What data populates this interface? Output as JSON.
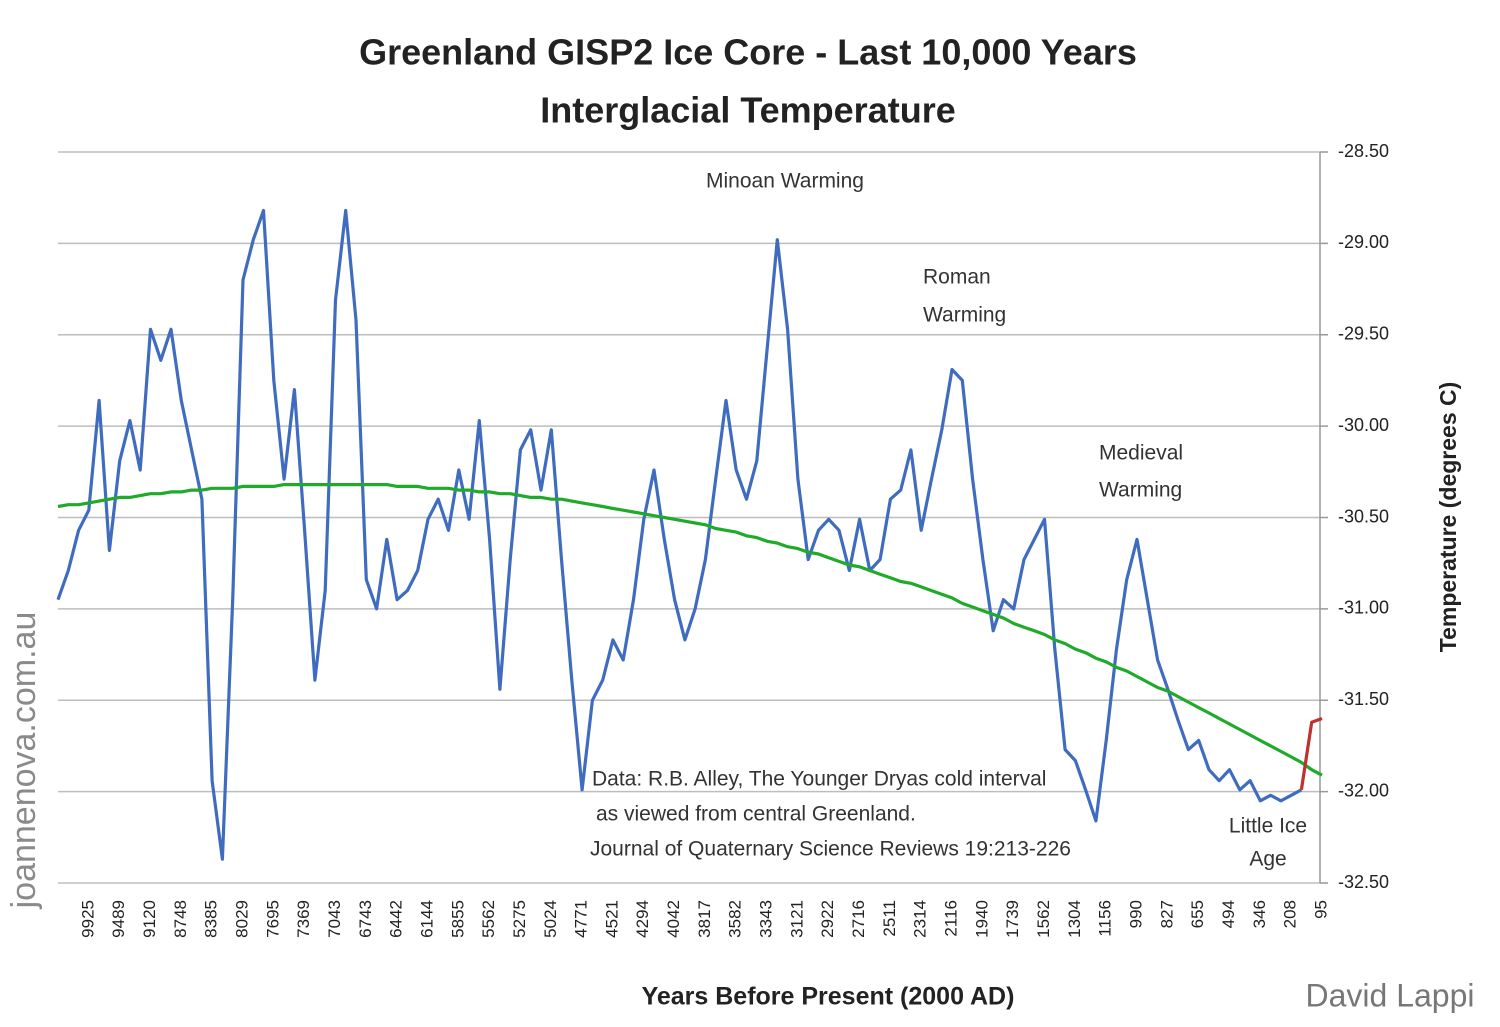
{
  "chart_data": {
    "type": "line",
    "title": [
      "Greenland GISP2 Ice Core - Last 10,000 Years",
      "Interglacial Temperature"
    ],
    "x_label": "Years Before Present (2000 AD)",
    "y_label": "Temperature (degrees C)",
    "categories": [
      null,
      null,
      null,
      "9925",
      null,
      null,
      "9489",
      null,
      null,
      "9120",
      null,
      null,
      "8748",
      null,
      null,
      "8385",
      null,
      null,
      "8029",
      null,
      null,
      "7695",
      null,
      null,
      "7369",
      null,
      null,
      "7043",
      null,
      null,
      "6743",
      null,
      null,
      "6442",
      null,
      null,
      "6144",
      null,
      null,
      "5855",
      null,
      null,
      "5562",
      null,
      null,
      "5275",
      null,
      null,
      "5024",
      null,
      null,
      "4771",
      null,
      null,
      "4521",
      null,
      null,
      "4294",
      null,
      null,
      "4042",
      null,
      null,
      "3817",
      null,
      null,
      "3582",
      null,
      null,
      "3343",
      null,
      null,
      "3121",
      null,
      null,
      "2922",
      null,
      null,
      "2716",
      null,
      null,
      "2511",
      null,
      null,
      "2314",
      null,
      null,
      "2116",
      null,
      null,
      "1940",
      null,
      null,
      "1739",
      null,
      null,
      "1562",
      null,
      null,
      "1304",
      null,
      null,
      "1156",
      null,
      null,
      "990",
      null,
      null,
      "827",
      null,
      null,
      "655",
      null,
      null,
      "494",
      null,
      null,
      "346",
      null,
      null,
      "208",
      null,
      null,
      "95"
    ],
    "series": [
      {
        "color": "#3f6cbf",
        "values": [
          -30.95,
          -30.79,
          -30.57,
          -30.46,
          -29.86,
          -30.68,
          -30.19,
          -29.97,
          -30.24,
          -29.47,
          -29.64,
          -29.47,
          -29.86,
          -30.13,
          -30.4,
          -31.94,
          -32.37,
          -30.95,
          -29.2,
          -28.98,
          -28.82,
          -29.75,
          -30.29,
          -29.8,
          -30.57,
          -31.39,
          -30.9,
          -29.31,
          -28.82,
          -29.42,
          -30.84,
          -31.0,
          -30.62,
          -30.95,
          -30.9,
          -30.79,
          -30.51,
          -30.4,
          -30.57,
          -30.24,
          -30.51,
          -29.97,
          -30.62,
          -31.44,
          -30.73,
          -30.13,
          -30.02,
          -30.35,
          -30.02,
          -30.73,
          -31.39,
          -31.99,
          -31.5,
          -31.39,
          -31.17,
          -31.28,
          -30.95,
          -30.51,
          -30.24,
          -30.62,
          -30.95,
          -31.17,
          -31.0,
          -30.73,
          -30.29,
          -29.86,
          -30.24,
          -30.4,
          -30.19,
          -29.58,
          -28.98,
          -29.47,
          -30.29,
          -30.73,
          -30.57,
          -30.51,
          -30.57,
          -30.79,
          -30.51,
          -30.79,
          -30.73,
          -30.4,
          -30.35,
          -30.13,
          -30.57,
          -30.29,
          -30.02,
          -29.69,
          -29.75,
          -30.29,
          -30.73,
          -31.12,
          -30.95,
          -31.0,
          -30.73,
          -30.62,
          -30.51,
          -31.22,
          -31.77,
          -31.83,
          -31.99,
          -32.16,
          -31.72,
          -31.22,
          -30.84,
          -30.62,
          -30.95,
          -31.28,
          -31.44,
          -31.61,
          -31.77,
          -31.72,
          -31.88,
          -31.94,
          -31.88,
          -31.99,
          -31.94,
          -32.05,
          -32.02,
          -32.05,
          -32.02,
          -31.99,
          null,
          null
        ]
      },
      {
        "color": "#1faa2a",
        "values": [
          -30.44,
          -30.43,
          -30.43,
          -30.42,
          -30.41,
          -30.4,
          -30.39,
          -30.39,
          -30.38,
          -30.37,
          -30.37,
          -30.36,
          -30.36,
          -30.35,
          -30.35,
          -30.34,
          -30.34,
          -30.34,
          -30.33,
          -30.33,
          -30.33,
          -30.33,
          -30.32,
          -30.32,
          -30.32,
          -30.32,
          -30.32,
          -30.32,
          -30.32,
          -30.32,
          -30.32,
          -30.32,
          -30.32,
          -30.33,
          -30.33,
          -30.33,
          -30.34,
          -30.34,
          -30.34,
          -30.35,
          -30.35,
          -30.36,
          -30.36,
          -30.37,
          -30.37,
          -30.38,
          -30.39,
          -30.39,
          -30.4,
          -30.4,
          -30.41,
          -30.42,
          -30.43,
          -30.44,
          -30.45,
          -30.46,
          -30.47,
          -30.48,
          -30.49,
          -30.5,
          -30.51,
          -30.52,
          -30.53,
          -30.54,
          -30.56,
          -30.57,
          -30.58,
          -30.6,
          -30.61,
          -30.63,
          -30.64,
          -30.66,
          -30.67,
          -30.69,
          -30.7,
          -30.72,
          -30.74,
          -30.76,
          -30.77,
          -30.79,
          -30.81,
          -30.83,
          -30.85,
          -30.86,
          -30.88,
          -30.9,
          -30.92,
          -30.94,
          -30.97,
          -30.99,
          -31.01,
          -31.03,
          -31.05,
          -31.08,
          -31.1,
          -31.12,
          -31.14,
          -31.17,
          -31.19,
          -31.22,
          -31.24,
          -31.27,
          -31.29,
          -31.32,
          -31.34,
          -31.37,
          -31.4,
          -31.43,
          -31.45,
          -31.48,
          -31.51,
          -31.54,
          -31.57,
          -31.6,
          -31.63,
          -31.66,
          -31.69,
          -31.72,
          -31.75,
          -31.78,
          -31.81,
          -31.84,
          -31.88,
          -31.91
        ]
      },
      {
        "color": "#c0302e",
        "values": [
          null,
          null,
          null,
          null,
          null,
          null,
          null,
          null,
          null,
          null,
          null,
          null,
          null,
          null,
          null,
          null,
          null,
          null,
          null,
          null,
          null,
          null,
          null,
          null,
          null,
          null,
          null,
          null,
          null,
          null,
          null,
          null,
          null,
          null,
          null,
          null,
          null,
          null,
          null,
          null,
          null,
          null,
          null,
          null,
          null,
          null,
          null,
          null,
          null,
          null,
          null,
          null,
          null,
          null,
          null,
          null,
          null,
          null,
          null,
          null,
          null,
          null,
          null,
          null,
          null,
          null,
          null,
          null,
          null,
          null,
          null,
          null,
          null,
          null,
          null,
          null,
          null,
          null,
          null,
          null,
          null,
          null,
          null,
          null,
          null,
          null,
          null,
          null,
          null,
          null,
          null,
          null,
          null,
          null,
          null,
          null,
          null,
          null,
          null,
          null,
          null,
          null,
          null,
          null,
          null,
          null,
          null,
          null,
          null,
          null,
          null,
          null,
          null,
          null,
          null,
          null,
          null,
          null,
          null,
          null,
          null,
          -31.99,
          -31.62,
          -31.6
        ]
      }
    ],
    "ylim": [
      -32.5,
      -28.5
    ],
    "yticks": [
      {
        "value": -32.5,
        "label": "-32.50"
      },
      {
        "value": -32,
        "label": "-32.00"
      },
      {
        "value": -31.5,
        "label": "-31.50"
      },
      {
        "value": -31,
        "label": "-31.00"
      },
      {
        "value": -30.5,
        "label": "-30.50"
      },
      {
        "value": -30,
        "label": "-30.00"
      },
      {
        "value": -29.5,
        "label": "-29.50"
      },
      {
        "value": -29,
        "label": "-29.00"
      },
      {
        "value": -28.5,
        "label": "-28.50"
      }
    ],
    "grid": true,
    "annotations": [
      [
        "Minoan Warming"
      ],
      [
        "Roman",
        "Warming"
      ],
      [
        "Medieval",
        "Warming"
      ],
      [
        "Little Ice",
        "Age"
      ],
      [
        "Data: R.B. Alley,  The Younger Dryas cold interval",
        " as viewed from central Greenland.",
        "Journal of Quaternary  Science Reviews 19:213-226"
      ]
    ],
    "watermark": "joannenova.com.au",
    "credit": "David Lappi"
  }
}
